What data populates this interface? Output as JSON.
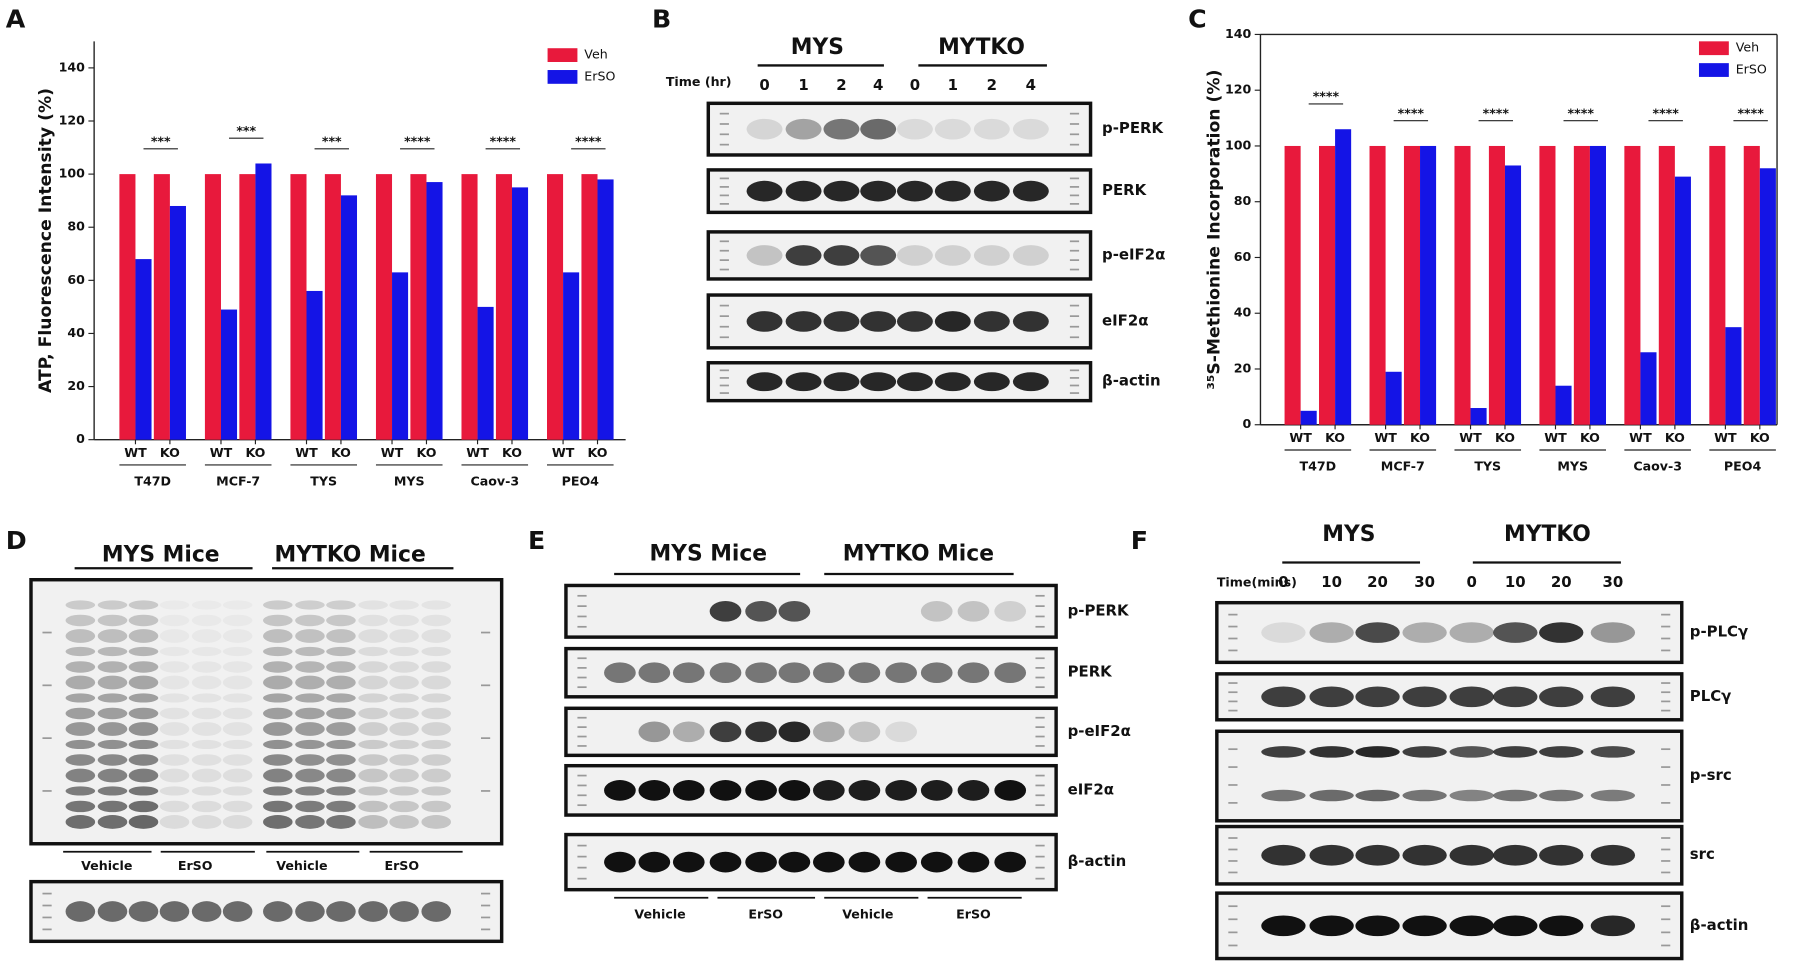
{
  "chart_data": [
    {
      "type": "bar",
      "panel": "A",
      "y_label": "ATP, Fluorescence Intensity (%)",
      "categories": [
        "WT",
        "KO",
        "WT",
        "KO",
        "WT",
        "KO",
        "WT",
        "KO",
        "WT",
        "KO",
        "WT",
        "KO"
      ],
      "groups": [
        "T47D",
        "MCF-7",
        "TYS",
        "MYS",
        "Caov-3",
        "PEO4"
      ],
      "series": [
        {
          "name": "Veh",
          "color": "#e8193c",
          "values": [
            100,
            100,
            100,
            100,
            100,
            100,
            100,
            100,
            100,
            100,
            100,
            100
          ]
        },
        {
          "name": "ErSO",
          "color": "#1414e6",
          "values": [
            68,
            88,
            49,
            104,
            56,
            92,
            63,
            97,
            50,
            95,
            63,
            98
          ]
        }
      ],
      "significance": [
        "***",
        "***",
        "***",
        "****",
        "****",
        "****"
      ],
      "ylim": [
        0,
        150
      ],
      "yticks": [
        0,
        20,
        40,
        60,
        80,
        100,
        120,
        140
      ],
      "legend": "upper right"
    },
    {
      "type": "bar",
      "panel": "C",
      "y_label": "³⁵S-Methionine Incorporation (%)",
      "categories": [
        "WT",
        "KO",
        "WT",
        "KO",
        "WT",
        "KO",
        "WT",
        "KO",
        "WT",
        "KO",
        "WT",
        "KO"
      ],
      "groups": [
        "T47D",
        "MCF-7",
        "TYS",
        "MYS",
        "Caov-3",
        "PEO4"
      ],
      "series": [
        {
          "name": "Veh",
          "color": "#e8193c",
          "values": [
            100,
            100,
            100,
            100,
            100,
            100,
            100,
            100,
            100,
            100,
            100,
            100
          ]
        },
        {
          "name": "ErSO",
          "color": "#1414e6",
          "values": [
            5,
            106,
            19,
            100,
            6,
            93,
            14,
            100,
            26,
            89,
            35,
            92
          ]
        }
      ],
      "significance": [
        "****",
        "****",
        "****",
        "****",
        "****",
        "****"
      ],
      "ylim": [
        0,
        140
      ],
      "yticks": [
        0,
        20,
        40,
        60,
        80,
        100,
        120,
        140
      ],
      "legend": "upper right"
    }
  ],
  "blots": [
    {
      "panel": "B",
      "groups": [
        "MYS",
        "MYTKO"
      ],
      "time_label": "Time (hr)",
      "times": [
        "0",
        "1",
        "2",
        "4",
        "0",
        "1",
        "2",
        "4"
      ],
      "rows": [
        "p-PERK",
        "PERK",
        "p-eIF2α",
        "eIF2α",
        "β-actin"
      ]
    },
    {
      "panel": "D",
      "groups": [
        "MYS Mice",
        "MYTKO Mice"
      ],
      "treatments": [
        "Vehicle",
        "ErSO",
        "Vehicle",
        "ErSO"
      ]
    },
    {
      "panel": "E",
      "groups": [
        "MYS Mice",
        "MYTKO Mice"
      ],
      "rows": [
        "p-PERK",
        "PERK",
        "p-eIF2α",
        "eIF2α",
        "β-actin"
      ],
      "treatments": [
        "Vehicle",
        "ErSO",
        "Vehicle",
        "ErSO"
      ]
    },
    {
      "panel": "F",
      "groups": [
        "MYS",
        "MYTKO"
      ],
      "time_label": "Time(mins)",
      "times": [
        "0",
        "10",
        "20",
        "30",
        "0",
        "10",
        "20",
        "30"
      ],
      "rows": [
        "p-PLCγ",
        "PLCγ",
        "p-src",
        "src",
        "β-actin"
      ]
    }
  ]
}
